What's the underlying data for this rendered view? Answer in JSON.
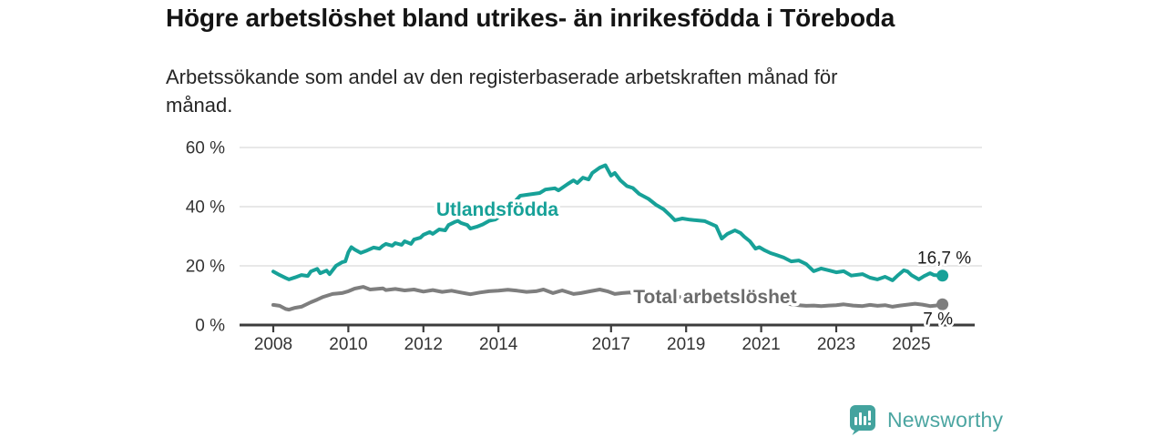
{
  "header": {
    "title": "Högre arbetslöshet bland utrikes- än inrikesfödda i Töreboda",
    "subtitle": "Arbetssökande som andel av den registerbaserade arbetskraften månad för\nmånad."
  },
  "footer": {
    "brand": "Newsworthy",
    "brand_color": "#4BA5A1",
    "icon": "bar-chart-speech-bubble-icon",
    "icon_color": "#43A39E"
  },
  "palette": {
    "accent_teal": "#17A198",
    "line_gray": "#7E7E7E",
    "grid_gray": "#D9D9D9",
    "axis_dark": "#3C3C3C",
    "text_dark": "#333333"
  },
  "chart_data": {
    "type": "line",
    "x_unit": "year (monthly values)",
    "y_unit": "%",
    "xlim": [
      2007.1,
      2026.7
    ],
    "ylim": [
      0,
      60
    ],
    "grid": "horizontal",
    "legend_position": "inline-labels",
    "x_ticks": [
      {
        "value": 2008,
        "label": "2008"
      },
      {
        "value": 2010,
        "label": "2010"
      },
      {
        "value": 2012,
        "label": "2012"
      },
      {
        "value": 2014,
        "label": "2014"
      },
      {
        "value": 2017,
        "label": "2017"
      },
      {
        "value": 2019,
        "label": "2019"
      },
      {
        "value": 2021,
        "label": "2021"
      },
      {
        "value": 2023,
        "label": "2023"
      },
      {
        "value": 2025,
        "label": "2025"
      }
    ],
    "y_ticks": [
      {
        "value": 0,
        "label": "0 %"
      },
      {
        "value": 20,
        "label": "20 %"
      },
      {
        "value": 40,
        "label": "40 %"
      },
      {
        "value": 60,
        "label": "60 %"
      }
    ],
    "series": [
      {
        "name": "Utlandsfödda",
        "color": "#17A198",
        "label_color": "#17A198",
        "label_at": [
          2013.97,
          36.9
        ],
        "end_label": "16,7 %",
        "end_label_side": "above",
        "points": [
          [
            2008.0,
            18.1
          ],
          [
            2008.17,
            16.9
          ],
          [
            2008.33,
            15.9
          ],
          [
            2008.42,
            15.4
          ],
          [
            2008.58,
            16.1
          ],
          [
            2008.75,
            16.9
          ],
          [
            2008.92,
            16.6
          ],
          [
            2009.0,
            18.1
          ],
          [
            2009.17,
            19.0
          ],
          [
            2009.25,
            17.5
          ],
          [
            2009.42,
            18.4
          ],
          [
            2009.5,
            17.2
          ],
          [
            2009.58,
            18.5
          ],
          [
            2009.67,
            20.0
          ],
          [
            2009.83,
            21.2
          ],
          [
            2009.92,
            21.5
          ],
          [
            2010.0,
            24.6
          ],
          [
            2010.08,
            26.3
          ],
          [
            2010.17,
            25.5
          ],
          [
            2010.33,
            24.4
          ],
          [
            2010.5,
            25.2
          ],
          [
            2010.67,
            26.2
          ],
          [
            2010.83,
            25.8
          ],
          [
            2010.92,
            26.8
          ],
          [
            2011.0,
            27.4
          ],
          [
            2011.17,
            26.8
          ],
          [
            2011.25,
            27.7
          ],
          [
            2011.42,
            27.1
          ],
          [
            2011.5,
            28.3
          ],
          [
            2011.67,
            27.4
          ],
          [
            2011.75,
            28.9
          ],
          [
            2011.92,
            29.5
          ],
          [
            2012.0,
            30.5
          ],
          [
            2012.17,
            31.4
          ],
          [
            2012.25,
            30.8
          ],
          [
            2012.42,
            32.3
          ],
          [
            2012.58,
            32.0
          ],
          [
            2012.67,
            33.8
          ],
          [
            2012.83,
            34.8
          ],
          [
            2012.92,
            35.2
          ],
          [
            2013.0,
            34.5
          ],
          [
            2013.17,
            33.8
          ],
          [
            2013.25,
            32.6
          ],
          [
            2013.42,
            33.2
          ],
          [
            2013.58,
            34.0
          ],
          [
            2013.75,
            35.2
          ],
          [
            2013.92,
            35.7
          ],
          [
            2014.0,
            36.4
          ],
          [
            2014.25,
            38.5
          ],
          [
            2014.42,
            41.5
          ],
          [
            2014.58,
            43.7
          ],
          [
            2014.75,
            44.0
          ],
          [
            2015.1,
            44.6
          ],
          [
            2015.25,
            45.8
          ],
          [
            2015.5,
            46.2
          ],
          [
            2015.6,
            45.5
          ],
          [
            2015.85,
            47.7
          ],
          [
            2016.0,
            48.9
          ],
          [
            2016.1,
            48.0
          ],
          [
            2016.25,
            49.8
          ],
          [
            2016.4,
            49.2
          ],
          [
            2016.5,
            51.4
          ],
          [
            2016.7,
            53.2
          ],
          [
            2016.85,
            54.0
          ],
          [
            2017.0,
            50.5
          ],
          [
            2017.1,
            51.4
          ],
          [
            2017.25,
            48.9
          ],
          [
            2017.42,
            47.0
          ],
          [
            2017.58,
            46.3
          ],
          [
            2017.75,
            44.3
          ],
          [
            2018.0,
            42.6
          ],
          [
            2018.2,
            40.6
          ],
          [
            2018.4,
            39.1
          ],
          [
            2018.58,
            37.0
          ],
          [
            2018.7,
            35.4
          ],
          [
            2018.9,
            36.0
          ],
          [
            2019.1,
            35.6
          ],
          [
            2019.25,
            35.4
          ],
          [
            2019.5,
            35.1
          ],
          [
            2019.8,
            33.4
          ],
          [
            2019.95,
            29.2
          ],
          [
            2020.1,
            30.8
          ],
          [
            2020.3,
            32.0
          ],
          [
            2020.45,
            31.1
          ],
          [
            2020.55,
            29.8
          ],
          [
            2020.7,
            28.3
          ],
          [
            2020.85,
            25.8
          ],
          [
            2020.95,
            26.3
          ],
          [
            2021.1,
            25.2
          ],
          [
            2021.25,
            24.3
          ],
          [
            2021.4,
            23.7
          ],
          [
            2021.6,
            22.8
          ],
          [
            2021.8,
            21.5
          ],
          [
            2022.0,
            21.8
          ],
          [
            2022.2,
            20.6
          ],
          [
            2022.4,
            18.2
          ],
          [
            2022.6,
            19.1
          ],
          [
            2022.8,
            18.5
          ],
          [
            2023.0,
            17.8
          ],
          [
            2023.2,
            18.2
          ],
          [
            2023.4,
            16.7
          ],
          [
            2023.7,
            17.2
          ],
          [
            2023.9,
            16.0
          ],
          [
            2024.1,
            15.4
          ],
          [
            2024.3,
            16.3
          ],
          [
            2024.5,
            15.1
          ],
          [
            2024.65,
            16.9
          ],
          [
            2024.8,
            18.5
          ],
          [
            2024.9,
            18.1
          ],
          [
            2025.0,
            16.9
          ],
          [
            2025.2,
            15.4
          ],
          [
            2025.35,
            16.6
          ],
          [
            2025.5,
            17.5
          ],
          [
            2025.6,
            16.9
          ],
          [
            2025.83,
            16.7
          ]
        ]
      },
      {
        "name": "Total arbetslöshet",
        "color": "#7E7E7E",
        "label_color": "#6B6B6B",
        "label_at": [
          2019.77,
          7.4
        ],
        "end_label": "7 %",
        "end_label_side": "below",
        "points": [
          [
            2008.0,
            6.8
          ],
          [
            2008.17,
            6.5
          ],
          [
            2008.33,
            5.4
          ],
          [
            2008.42,
            5.2
          ],
          [
            2008.58,
            5.8
          ],
          [
            2008.75,
            6.2
          ],
          [
            2009.0,
            7.7
          ],
          [
            2009.17,
            8.6
          ],
          [
            2009.33,
            9.5
          ],
          [
            2009.58,
            10.5
          ],
          [
            2009.83,
            10.8
          ],
          [
            2010.0,
            11.4
          ],
          [
            2010.17,
            12.3
          ],
          [
            2010.4,
            12.9
          ],
          [
            2010.58,
            12.0
          ],
          [
            2010.75,
            12.2
          ],
          [
            2010.92,
            12.4
          ],
          [
            2011.0,
            11.8
          ],
          [
            2011.25,
            12.2
          ],
          [
            2011.5,
            11.7
          ],
          [
            2011.75,
            12.0
          ],
          [
            2012.0,
            11.3
          ],
          [
            2012.25,
            11.8
          ],
          [
            2012.5,
            11.2
          ],
          [
            2012.75,
            11.6
          ],
          [
            2013.0,
            11.0
          ],
          [
            2013.25,
            10.4
          ],
          [
            2013.5,
            11.0
          ],
          [
            2013.75,
            11.4
          ],
          [
            2014.0,
            11.6
          ],
          [
            2014.25,
            11.9
          ],
          [
            2014.5,
            11.6
          ],
          [
            2014.75,
            11.2
          ],
          [
            2015.0,
            11.4
          ],
          [
            2015.2,
            12.0
          ],
          [
            2015.45,
            10.8
          ],
          [
            2015.7,
            11.7
          ],
          [
            2016.0,
            10.5
          ],
          [
            2016.2,
            10.8
          ],
          [
            2016.45,
            11.4
          ],
          [
            2016.7,
            12.0
          ],
          [
            2016.9,
            11.4
          ],
          [
            2017.1,
            10.5
          ],
          [
            2017.3,
            10.8
          ],
          [
            2017.5,
            11.0
          ],
          [
            2017.7,
            10.6
          ],
          [
            2018.0,
            10.2
          ],
          [
            2018.3,
            9.8
          ],
          [
            2018.6,
            9.6
          ],
          [
            2018.9,
            9.4
          ],
          [
            2019.2,
            9.2
          ],
          [
            2019.5,
            9.0
          ],
          [
            2019.8,
            8.9
          ],
          [
            2020.0,
            9.0
          ],
          [
            2020.25,
            9.7
          ],
          [
            2020.5,
            9.4
          ],
          [
            2020.75,
            9.0
          ],
          [
            2021.0,
            8.5
          ],
          [
            2021.3,
            8.0
          ],
          [
            2021.6,
            7.4
          ],
          [
            2021.8,
            7.0
          ],
          [
            2022.0,
            6.7
          ],
          [
            2022.2,
            6.5
          ],
          [
            2022.4,
            6.6
          ],
          [
            2022.6,
            6.4
          ],
          [
            2022.8,
            6.6
          ],
          [
            2023.0,
            6.7
          ],
          [
            2023.2,
            7.0
          ],
          [
            2023.45,
            6.6
          ],
          [
            2023.7,
            6.4
          ],
          [
            2023.9,
            6.8
          ],
          [
            2024.1,
            6.5
          ],
          [
            2024.3,
            6.7
          ],
          [
            2024.5,
            6.2
          ],
          [
            2024.7,
            6.6
          ],
          [
            2024.9,
            6.9
          ],
          [
            2025.1,
            7.2
          ],
          [
            2025.3,
            6.9
          ],
          [
            2025.5,
            6.4
          ],
          [
            2025.65,
            6.6
          ],
          [
            2025.83,
            7.0
          ]
        ]
      }
    ]
  }
}
